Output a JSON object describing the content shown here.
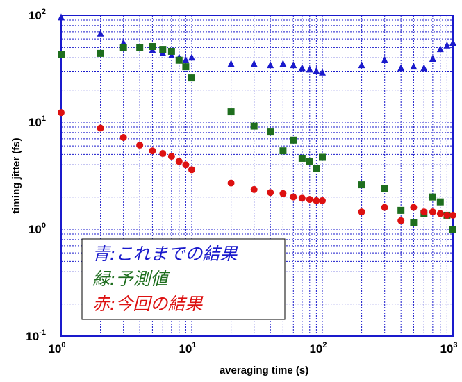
{
  "chart_data": {
    "type": "scatter",
    "xscale": "log",
    "yscale": "log",
    "xlim": [
      1,
      1000
    ],
    "ylim": [
      0.1,
      100
    ],
    "xlabel": "averaging time (s)",
    "ylabel": "timing jitter (fs)",
    "grid": true,
    "legend_position": "bottom-left",
    "xticks": [
      {
        "base": "10",
        "exp": "0",
        "value": 1
      },
      {
        "base": "10",
        "exp": "1",
        "value": 10
      },
      {
        "base": "10",
        "exp": "2",
        "value": 100
      },
      {
        "base": "10",
        "exp": "3",
        "value": 1000
      }
    ],
    "yticks": [
      {
        "base": "10",
        "exp": "-1",
        "value": 0.1
      },
      {
        "base": "10",
        "exp": "0",
        "value": 1
      },
      {
        "base": "10",
        "exp": "1",
        "value": 10
      },
      {
        "base": "10",
        "exp": "2",
        "value": 100
      }
    ],
    "series": [
      {
        "label": "青:これまでの結果",
        "color": "#1a1acc",
        "marker": "triangle",
        "x": [
          1,
          2,
          3,
          4,
          5,
          6,
          7,
          8,
          9,
          10,
          20,
          30,
          40,
          50,
          60,
          70,
          80,
          90,
          100,
          200,
          300,
          400,
          500,
          600,
          700,
          800,
          900,
          1000
        ],
        "y": [
          95,
          67,
          55,
          50,
          47,
          44,
          42,
          40,
          38,
          40,
          35,
          35,
          34,
          35,
          34,
          32,
          31,
          30,
          29,
          34,
          38,
          32,
          33,
          32,
          39,
          48,
          52,
          55
        ]
      },
      {
        "label": "緑:予測値",
        "color": "#1e6e1e",
        "marker": "square",
        "x": [
          1,
          2,
          3,
          4,
          5,
          6,
          7,
          8,
          9,
          10,
          20,
          30,
          40,
          50,
          60,
          70,
          80,
          90,
          100,
          200,
          300,
          400,
          500,
          600,
          700,
          800,
          900,
          1000
        ],
        "y": [
          43,
          44,
          50,
          50,
          51,
          48,
          46,
          38,
          33,
          26,
          12.5,
          9.2,
          8.1,
          5.4,
          6.8,
          4.6,
          4.3,
          3.7,
          4.7,
          2.6,
          2.4,
          1.5,
          1.15,
          1.4,
          2.0,
          1.8,
          1.35,
          1.0
        ]
      },
      {
        "label": "赤:今回の結果",
        "color": "#dd1111",
        "marker": "circle",
        "x": [
          1,
          2,
          3,
          4,
          5,
          6,
          7,
          8,
          9,
          10,
          20,
          30,
          40,
          50,
          60,
          70,
          80,
          90,
          100,
          200,
          300,
          400,
          500,
          600,
          700,
          800,
          900,
          1000
        ],
        "y": [
          12.3,
          8.8,
          7.2,
          6.1,
          5.4,
          5.1,
          4.8,
          4.3,
          4.0,
          3.6,
          2.7,
          2.35,
          2.2,
          2.15,
          2.0,
          1.95,
          1.9,
          1.85,
          1.85,
          1.45,
          1.6,
          1.2,
          1.6,
          1.45,
          1.45,
          1.4,
          1.35,
          1.35
        ]
      }
    ]
  }
}
